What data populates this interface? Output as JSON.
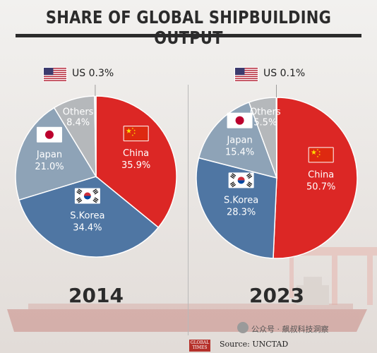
{
  "title": "SHARE OF GLOBAL SHIPBUILDING OUTPUT",
  "source": "Source: UNCTAD",
  "logo_text": "GLOBAL TIMES",
  "watermark": "公众号 · 飙叔科技洞察",
  "colors": {
    "china": "#dc2725",
    "skorea": "#4f76a3",
    "japan": "#8ea3b7",
    "others": "#b5b8bb",
    "us": "#e4e4e4"
  },
  "chart_data": [
    {
      "type": "pie",
      "title": "2014",
      "slices": [
        {
          "key": "china",
          "name": "China",
          "value": 35.9,
          "label": "35.9%"
        },
        {
          "key": "skorea",
          "name": "S.Korea",
          "value": 34.4,
          "label": "34.4%"
        },
        {
          "key": "japan",
          "name": "Japan",
          "value": 21.0,
          "label": "21.0%"
        },
        {
          "key": "others",
          "name": "Others",
          "value": 8.4,
          "label": "8.4%"
        },
        {
          "key": "us",
          "name": "US",
          "value": 0.3,
          "label": "US 0.3%"
        }
      ]
    },
    {
      "type": "pie",
      "title": "2023",
      "slices": [
        {
          "key": "china",
          "name": "China",
          "value": 50.7,
          "label": "50.7%"
        },
        {
          "key": "skorea",
          "name": "S.Korea",
          "value": 28.3,
          "label": "28.3%"
        },
        {
          "key": "japan",
          "name": "Japan",
          "value": 15.4,
          "label": "15.4%"
        },
        {
          "key": "others",
          "name": "Others",
          "value": 5.5,
          "label": "5.5%"
        },
        {
          "key": "us",
          "name": "US",
          "value": 0.1,
          "label": "US 0.1%"
        }
      ]
    }
  ]
}
